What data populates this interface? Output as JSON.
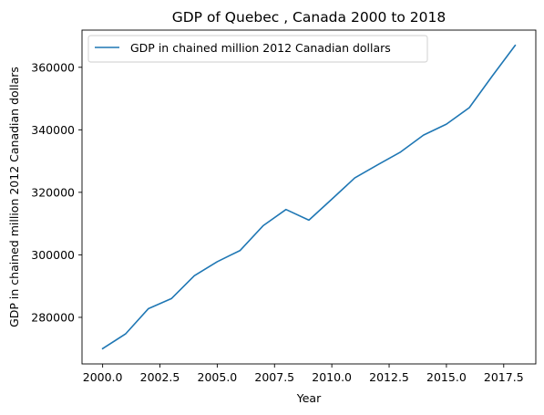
{
  "chart_data": {
    "type": "line",
    "title": "GDP of Quebec , Canada 2000 to 2018",
    "xlabel": "Year",
    "ylabel": "GDP in chained million 2012 Canadian dollars",
    "xlim": [
      1999.1,
      2018.9
    ],
    "ylim": [
      265100,
      371900
    ],
    "x_ticks": [
      2000.0,
      2002.5,
      2005.0,
      2007.5,
      2010.0,
      2012.5,
      2015.0,
      2017.5
    ],
    "x_tick_labels": [
      "2000.0",
      "2002.5",
      "2005.0",
      "2007.5",
      "2010.0",
      "2012.5",
      "2015.0",
      "2017.5"
    ],
    "y_ticks": [
      280000,
      300000,
      320000,
      340000,
      360000
    ],
    "y_tick_labels": [
      "280000",
      "300000",
      "320000",
      "340000",
      "360000"
    ],
    "grid": false,
    "legend_position": "top-left",
    "series": [
      {
        "name": "GDP in chained million 2012 Canadian dollars",
        "color": "#1f77b4",
        "x": [
          2000,
          2001,
          2002,
          2003,
          2004,
          2005,
          2006,
          2007,
          2008,
          2009,
          2010,
          2011,
          2012,
          2013,
          2014,
          2015,
          2016,
          2017,
          2018
        ],
        "y": [
          270000,
          274700,
          282800,
          286000,
          293300,
          297800,
          301400,
          309300,
          314500,
          311100,
          317800,
          324600,
          328800,
          332900,
          338300,
          341800,
          347100,
          357200,
          367000
        ]
      }
    ]
  }
}
